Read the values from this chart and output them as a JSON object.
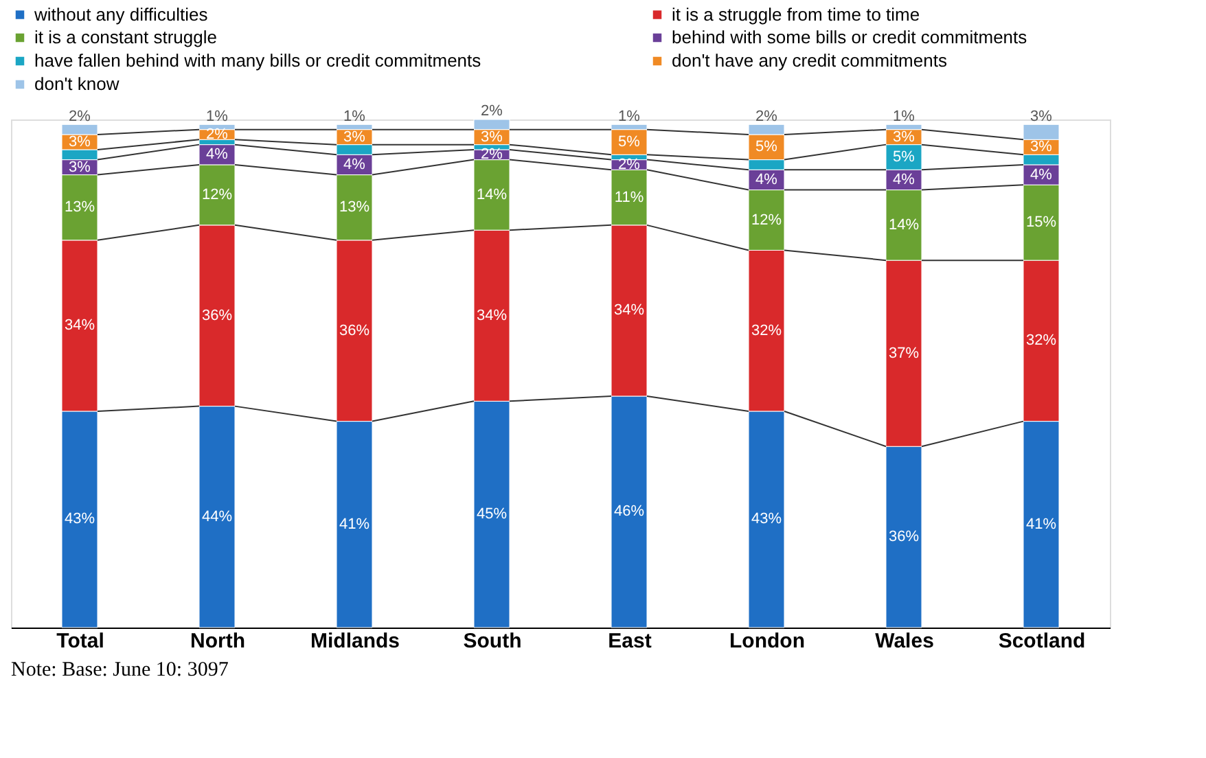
{
  "chart_data": {
    "type": "bar",
    "stacked": true,
    "categories": [
      "Total",
      "North",
      "Midlands",
      "South",
      "East",
      "London",
      "Wales",
      "Scotland"
    ],
    "series": [
      {
        "name": "without any difficulties",
        "color": "#1f6fc5",
        "values": [
          43,
          44,
          41,
          45,
          46,
          43,
          36,
          41
        ],
        "value_labels": [
          "43%",
          "44%",
          "41%",
          "45%",
          "46%",
          "43%",
          "36%",
          "41%"
        ]
      },
      {
        "name": "it is a struggle from time to time",
        "color": "#d9292b",
        "values": [
          34,
          36,
          36,
          34,
          34,
          32,
          37,
          32
        ],
        "value_labels": [
          "34%",
          "36%",
          "36%",
          "34%",
          "34%",
          "32%",
          "37%",
          "32%"
        ]
      },
      {
        "name": "it is a constant struggle",
        "color": "#6aa232",
        "values": [
          13,
          12,
          13,
          14,
          11,
          12,
          14,
          15
        ],
        "value_labels": [
          "13%",
          "12%",
          "13%",
          "14%",
          "11%",
          "12%",
          "14%",
          "15%"
        ]
      },
      {
        "name": "behind with some bills or credit commitments",
        "color": "#6a3f98",
        "values": [
          3,
          4,
          4,
          2,
          2,
          4,
          4,
          4
        ],
        "value_labels": [
          "3%",
          "4%",
          "4%",
          "2%",
          "2%",
          "4%",
          "4%",
          "4%"
        ]
      },
      {
        "name": "have fallen behind with many bills or credit commitments",
        "color": "#1ba6c4",
        "values": [
          2,
          1,
          2,
          1,
          1,
          2,
          5,
          2
        ],
        "value_labels": [
          null,
          null,
          null,
          null,
          null,
          null,
          "5%",
          null
        ]
      },
      {
        "name": "don't have any credit commitments",
        "color": "#f08a24",
        "values": [
          3,
          2,
          3,
          3,
          5,
          5,
          3,
          3
        ],
        "value_labels": [
          "3%",
          "2%",
          "3%",
          "3%",
          "5%",
          "5%",
          "3%",
          "3%"
        ]
      },
      {
        "name": "don't know",
        "color": "#9ec4e8",
        "values": [
          2,
          1,
          1,
          2,
          1,
          2,
          1,
          3
        ],
        "value_labels": [
          "2%",
          "1%",
          "1%",
          "2%",
          "1%",
          "2%",
          "1%",
          "3%"
        ]
      }
    ],
    "ylim": [
      0,
      101
    ],
    "tick_labels": "x",
    "legend": "top",
    "annotations": [
      "Note: Base: June 10: 3097"
    ]
  }
}
